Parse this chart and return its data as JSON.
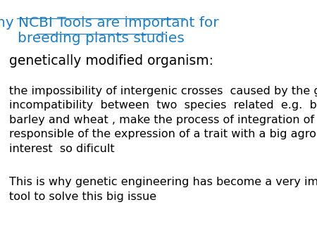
{
  "title_line1": "Why NCBI Tools are important for",
  "title_line2": "breeding plants studies",
  "title_color": "#1F7EC2",
  "subtitle": "genetically modified organism:",
  "subtitle_color": "#000000",
  "body1": "the impossibility of intergenic crosses  caused by the genetic\nincompatibility  between  two  species  related  e.g.  between\nbarley and wheat , make the process of integration of a gene\nresponsible of the expression of a trait with a big agronomic\ninterest  so dificult",
  "body2": "This is why genetic engineering has become a very important\ntool to solve this big issue",
  "body_color": "#000000",
  "background_color": "#ffffff",
  "title_fontsize": 14.5,
  "subtitle_fontsize": 13.5,
  "body_fontsize": 11.5
}
